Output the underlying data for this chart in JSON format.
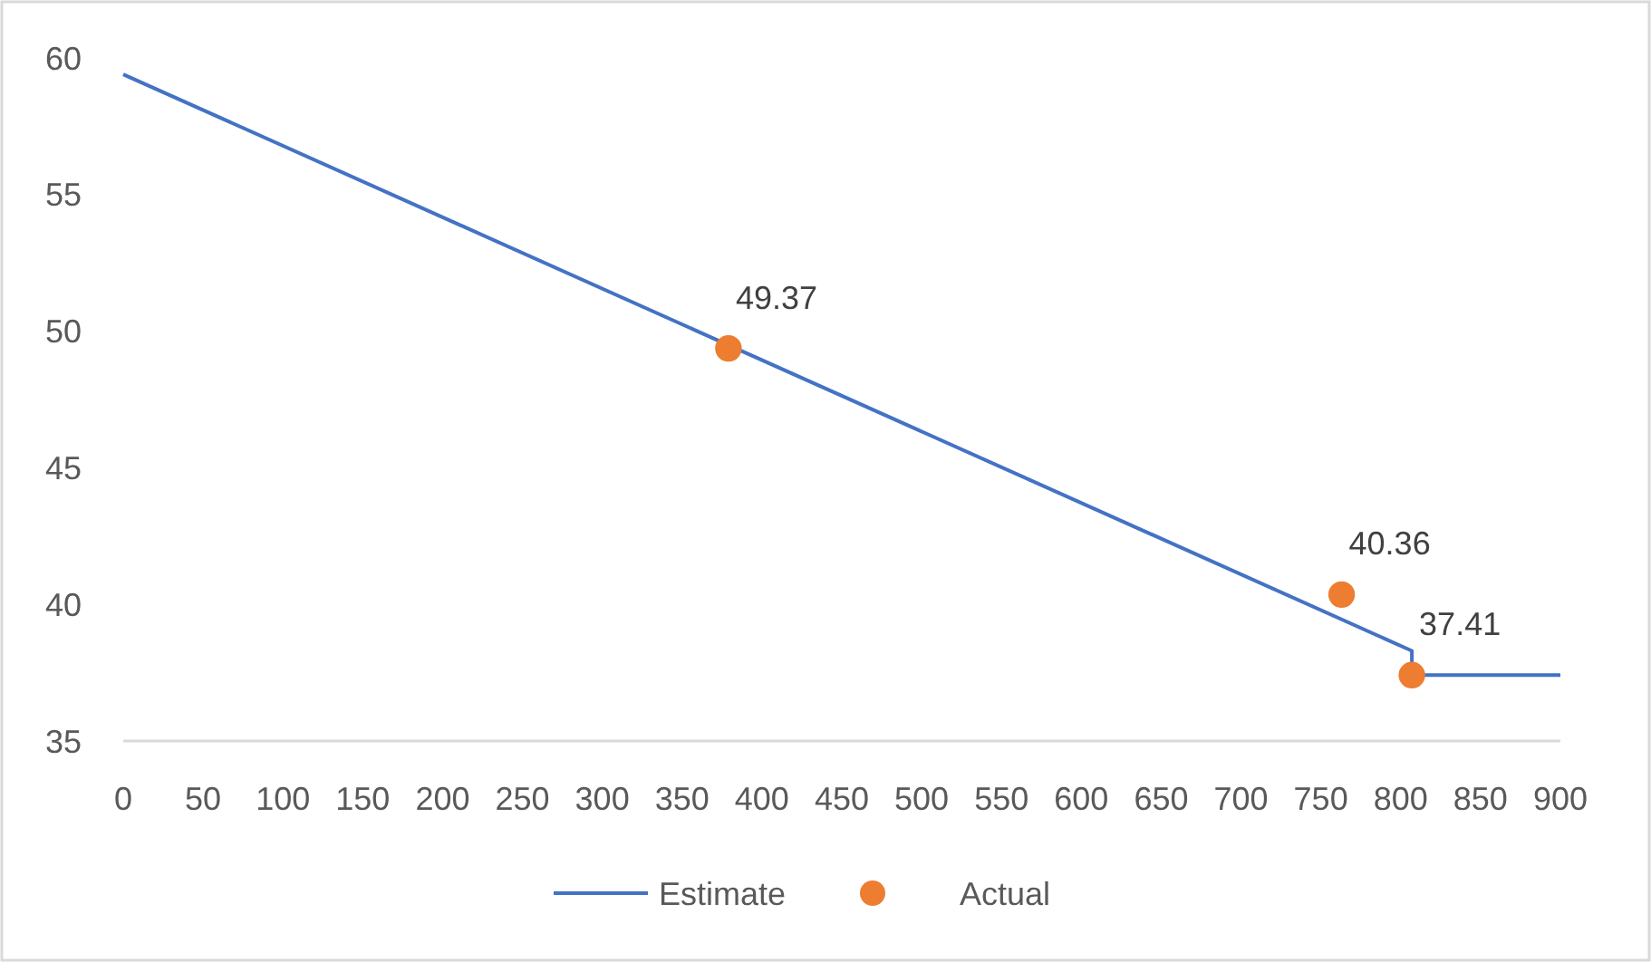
{
  "chart_data": {
    "type": "line",
    "xlim": [
      0,
      900
    ],
    "xticks": [
      0,
      50,
      100,
      150,
      200,
      250,
      300,
      350,
      400,
      450,
      500,
      550,
      600,
      650,
      700,
      750,
      800,
      850,
      900
    ],
    "ylim": [
      35,
      60
    ],
    "yticks": [
      35,
      40,
      45,
      50,
      55,
      60
    ],
    "legend": "bottom",
    "series": [
      {
        "name": "Estimate",
        "color": "#4472c4",
        "marker": "none",
        "x": [
          0,
          807,
          807,
          900
        ],
        "values": [
          59.4,
          38.3,
          37.41,
          37.41
        ]
      },
      {
        "name": "Actual",
        "type": "scatter",
        "color": "#ed7d31",
        "marker": "circle",
        "x": [
          379,
          763,
          807
        ],
        "values": [
          49.37,
          40.36,
          37.41
        ],
        "value_labels": [
          "49.37",
          "40.36",
          "37.41"
        ]
      }
    ]
  }
}
